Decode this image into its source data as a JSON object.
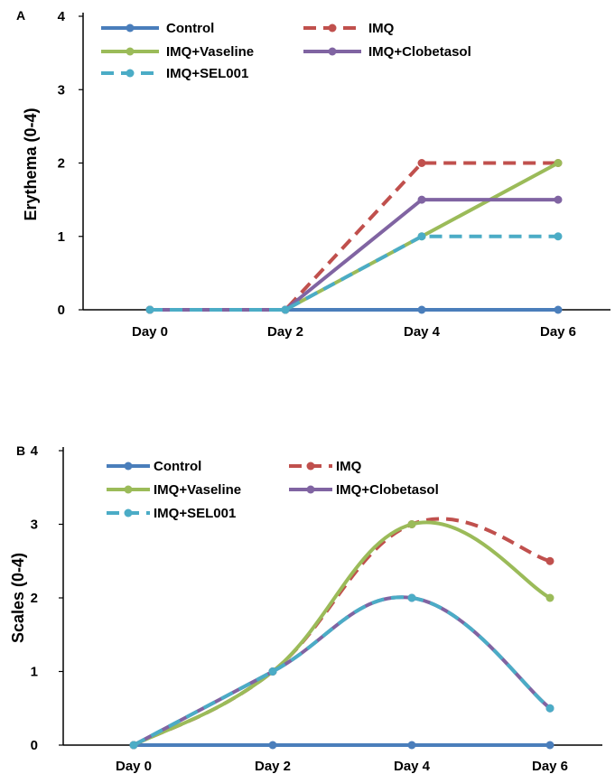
{
  "colors": {
    "Control": "#4A7EBB",
    "IMQ": "#C0504D",
    "IMQ+Vaseline": "#9BBB59",
    "IMQ+Clobetasol": "#8064A2",
    "IMQ+SEL001": "#4BACC6"
  },
  "chart_data": [
    {
      "panel": "A",
      "type": "line",
      "title": "",
      "xlabel": "",
      "ylabel": "Erythema  (0-4)",
      "categories": [
        "Day 0",
        "Day 2",
        "Day 4",
        "Day 6"
      ],
      "ylim": [
        0,
        4
      ],
      "yticks": [
        0,
        1,
        2,
        3,
        4
      ],
      "smooth": false,
      "grid": false,
      "legend_position": "top",
      "series": [
        {
          "name": "Control",
          "values": [
            0,
            0,
            0,
            0
          ],
          "dash": "solid",
          "marker": true
        },
        {
          "name": "IMQ",
          "values": [
            0,
            0,
            2,
            2
          ],
          "dash": "dashed",
          "marker": true
        },
        {
          "name": "IMQ+Vaseline",
          "values": [
            0,
            0,
            1,
            2
          ],
          "dash": "solid",
          "marker": true
        },
        {
          "name": "IMQ+Clobetasol",
          "values": [
            0,
            0,
            1.5,
            1.5
          ],
          "dash": "solid",
          "marker": true
        },
        {
          "name": "IMQ+SEL001",
          "values": [
            0,
            0,
            1,
            1
          ],
          "dash": "dashed",
          "marker": true
        }
      ]
    },
    {
      "panel": "B",
      "type": "line",
      "title": "",
      "xlabel": "",
      "ylabel": "Scales (0-4)",
      "categories": [
        "Day 0",
        "Day 2",
        "Day 4",
        "Day 6"
      ],
      "ylim": [
        0,
        4
      ],
      "yticks": [
        0,
        1,
        2,
        3,
        4
      ],
      "smooth": true,
      "grid": false,
      "legend_position": "top",
      "series": [
        {
          "name": "Control",
          "values": [
            0,
            0,
            0,
            0
          ],
          "dash": "solid",
          "marker": true
        },
        {
          "name": "IMQ",
          "values": [
            0,
            1,
            3,
            2.5
          ],
          "dash": "dashed",
          "marker": true
        },
        {
          "name": "IMQ+Vaseline",
          "values": [
            0,
            1,
            3,
            2
          ],
          "dash": "solid",
          "marker": true
        },
        {
          "name": "IMQ+Clobetasol",
          "values": [
            0,
            1,
            2,
            0.5
          ],
          "dash": "solid",
          "marker": true
        },
        {
          "name": "IMQ+SEL001",
          "values": [
            0,
            1,
            2,
            0.5
          ],
          "dash": "dashed",
          "marker": true
        }
      ]
    }
  ]
}
